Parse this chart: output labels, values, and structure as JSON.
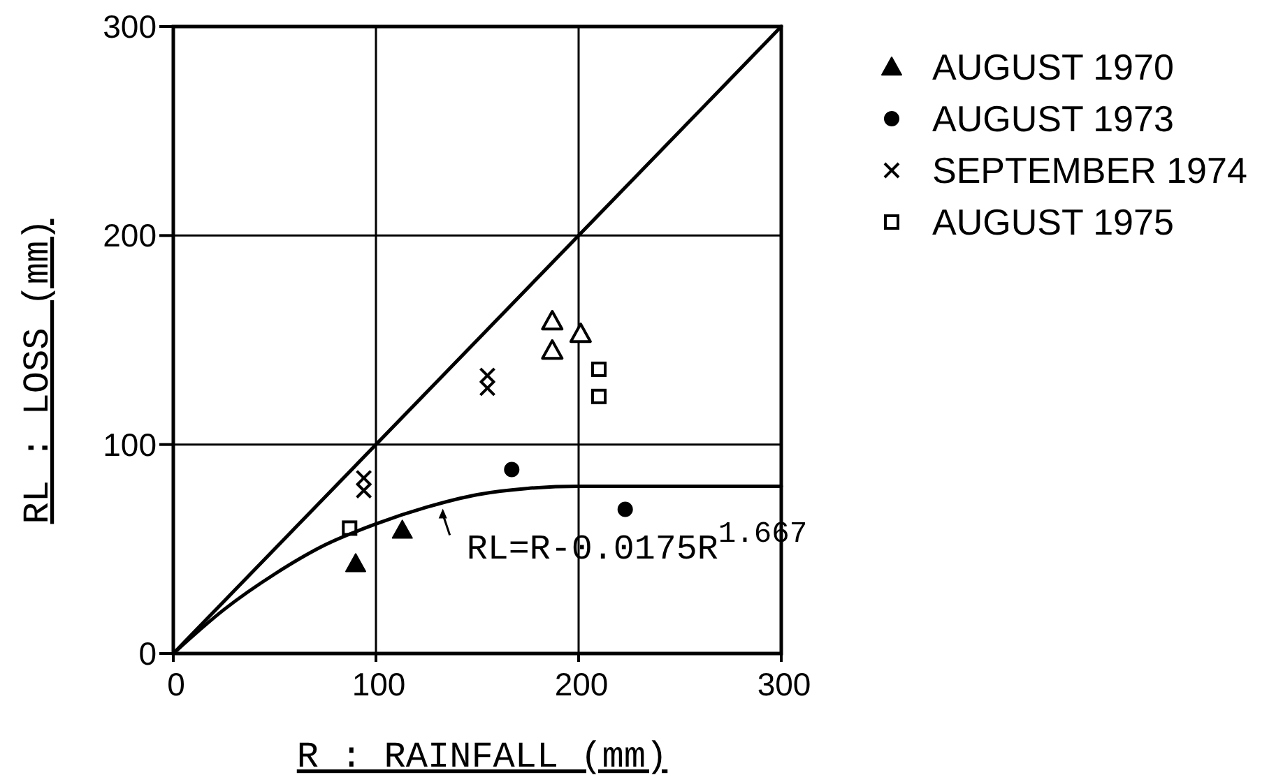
{
  "chart_data": {
    "type": "scatter",
    "xlabel": "R : RAINFALL (mm)",
    "ylabel": "RL : LOSS (mm)",
    "xlim": [
      0,
      300
    ],
    "ylim": [
      0,
      300
    ],
    "xticks": [
      0,
      100,
      200,
      300
    ],
    "yticks": [
      0,
      100,
      200,
      300
    ],
    "grid": true,
    "legend": "top right",
    "series": [
      {
        "name": "AUGUST 1970",
        "marker": "triangle",
        "color": "#000000",
        "x": [
          90,
          113
        ],
        "values": [
          43,
          59
        ]
      },
      {
        "name": "AUGUST 1973",
        "marker": "circle",
        "color": "#000000",
        "x": [
          167,
          223
        ],
        "values": [
          88,
          69
        ]
      },
      {
        "name": "SEPTEMBER 1974",
        "marker": "cross",
        "color": "#000000",
        "x": [
          94,
          94,
          155,
          155
        ],
        "values": [
          84,
          78,
          133,
          127
        ]
      },
      {
        "name": "AUGUST 1975",
        "marker": "square",
        "color": "#000000",
        "x": [
          87,
          210,
          210
        ],
        "values": [
          60,
          136,
          123
        ]
      },
      {
        "marker": "triangle",
        "color": "#000000",
        "x": [
          187,
          187,
          201
        ],
        "values": [
          159,
          145,
          153
        ]
      },
      {
        "type": "line",
        "color": "#000000",
        "x": [
          0,
          300
        ],
        "values": [
          0,
          300
        ]
      },
      {
        "type": "line",
        "color": "#000000",
        "x": [
          0,
          25,
          50,
          75,
          100,
          125,
          150,
          175,
          200,
          250,
          300
        ],
        "values": [
          0,
          21,
          38,
          52,
          62,
          70,
          76,
          79,
          80,
          80,
          80
        ]
      }
    ],
    "annotations": [
      {
        "text": "RL=R-0.0175R$^{1.667}$",
        "x": 133,
        "y": 70
      }
    ]
  }
}
